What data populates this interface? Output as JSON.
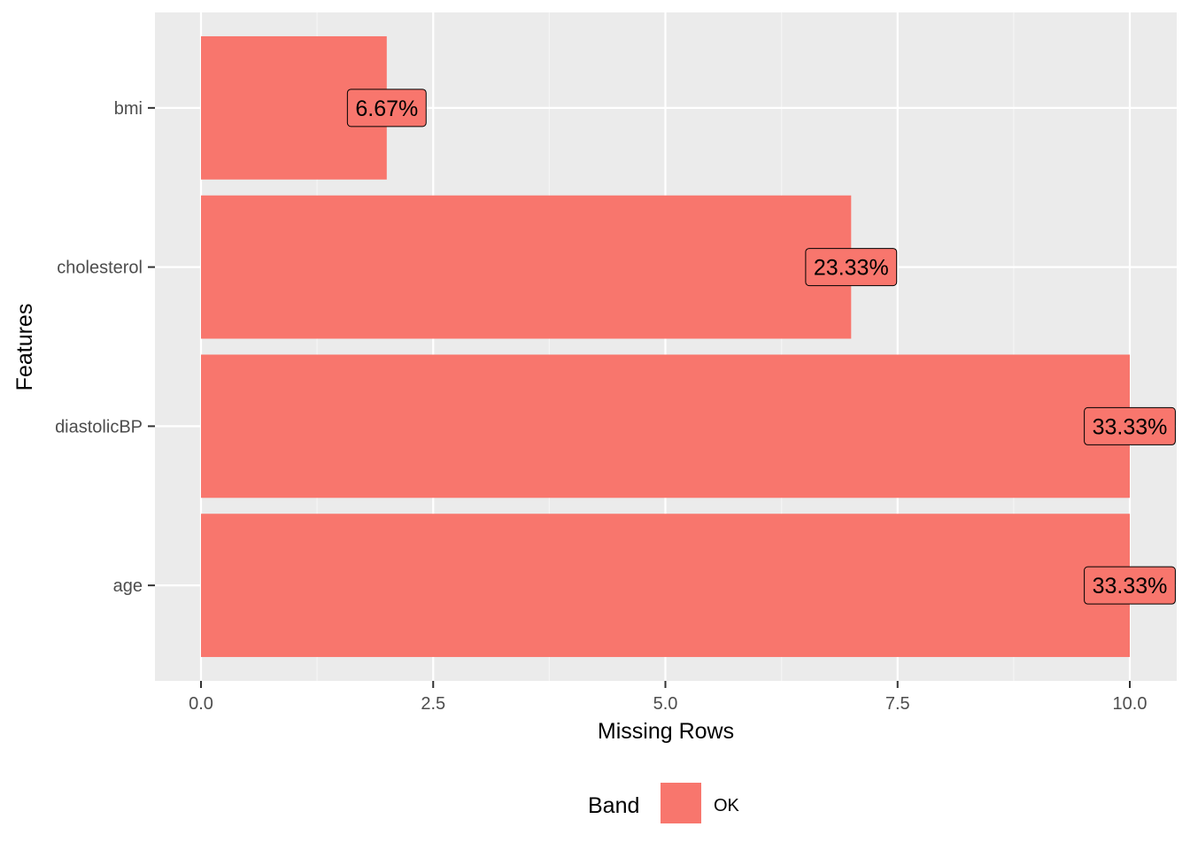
{
  "chart_data": {
    "type": "bar",
    "orientation": "horizontal",
    "categories": [
      "bmi",
      "cholesterol",
      "diastolicBP",
      "age"
    ],
    "values": [
      2,
      7,
      10,
      10
    ],
    "data_labels": [
      "6.67%",
      "23.33%",
      "33.33%",
      "33.33%"
    ],
    "xlabel": "Missing Rows",
    "ylabel": "Features",
    "xlim": [
      -0.5,
      10.5
    ],
    "xticks": [
      0,
      2.5,
      5,
      7.5,
      10
    ],
    "xtick_labels": [
      "0.0",
      "2.5",
      "5.0",
      "7.5",
      "10.0"
    ],
    "grid": true,
    "legend": {
      "title": "Band",
      "position": "bottom",
      "entries": [
        {
          "label": "OK",
          "color": "#F8766D"
        }
      ]
    },
    "colors": {
      "bar": "#F8766D",
      "panel": "#EBEBEB",
      "grid_major": "#FFFFFF",
      "grid_minor": "#F5F5F5"
    }
  }
}
